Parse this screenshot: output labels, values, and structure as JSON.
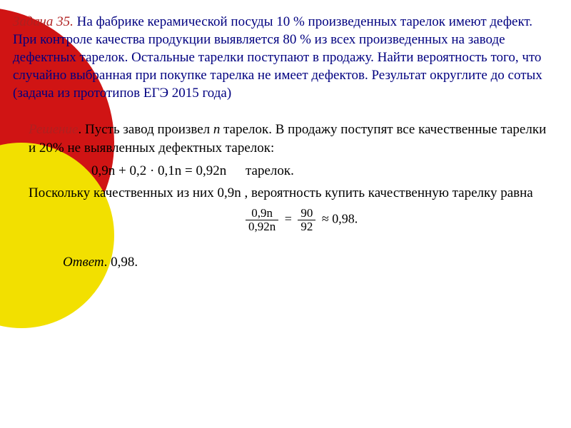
{
  "task": {
    "label": "Задача 35.",
    "text": " На  фабрике керамической посуды 10 % произведенных тарелок имеют дефект. При контроле качества продукции выявляется 80 % из всех произведенных на заводе  дефектных тарелок.  Остальные тарелки поступают в продажу. Найти вероятность того, что случайно выбранная при покупке тарелка не имеет  дефектов.  Результат округлите до сотых (задача из прототипов ЕГЭ 2015 года)"
  },
  "solution": {
    "label": "Решение",
    "p1a": ". Пусть завод произвел  ",
    "n": "n",
    "p1b": " тарелок. В продажу поступят все качественные тарелки и 20% не выявленных дефектных тарелок:",
    "formula1": "0,9n + 0,2 ·  0,1n = 0,92n",
    "formula1_after": "тарелок.",
    "p2": "Поскольку качественных из них  0,9n , вероятность купить качественную тарелку равна",
    "frac": {
      "top": "0,9n",
      "bot": "0,92n",
      "eq": " = ",
      "top2": "90",
      "bot2": "92",
      "approx": " ≈ 0,98."
    }
  },
  "answer": {
    "label": "Ответ",
    "value": ".  0,98."
  },
  "colors": {
    "red": "#d01414",
    "yellow": "#f2e000",
    "navy": "#000080",
    "darkred": "#b02020"
  }
}
